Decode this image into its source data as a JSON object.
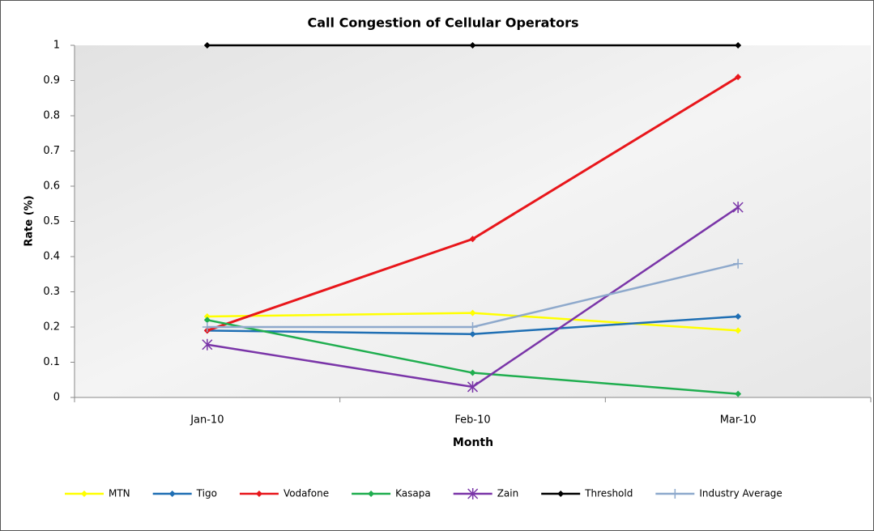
{
  "chart_data": {
    "type": "line",
    "title": "Call Congestion of Cellular Operators",
    "x_label": "Month",
    "y_label": "Rate (%)",
    "categories": [
      "Jan-10",
      "Feb-10",
      "Mar-10"
    ],
    "ylim": [
      0,
      1
    ],
    "yticks": [
      0,
      0.1,
      0.2,
      0.3,
      0.4,
      0.5,
      0.6,
      0.7,
      0.8,
      0.9,
      1
    ],
    "legend": "bottom",
    "series": [
      {
        "name": "MTN",
        "color": "#ffff00",
        "marker": "diamond",
        "values": [
          0.23,
          0.24,
          0.19
        ]
      },
      {
        "name": "Tigo",
        "color": "#1f6fb4",
        "marker": "diamond",
        "values": [
          0.19,
          0.18,
          0.23
        ]
      },
      {
        "name": "Vodafone",
        "color": "#e8161b",
        "marker": "diamond",
        "values": [
          0.19,
          0.45,
          0.91
        ]
      },
      {
        "name": "Kasapa",
        "color": "#1fae4f",
        "marker": "diamond",
        "values": [
          0.22,
          0.07,
          0.01
        ]
      },
      {
        "name": "Zain",
        "color": "#7a35a8",
        "marker": "star",
        "values": [
          0.15,
          0.03,
          0.54
        ]
      },
      {
        "name": "Threshold",
        "color": "#000000",
        "marker": "diamond",
        "values": [
          1,
          1,
          1
        ]
      },
      {
        "name": "Industry Average",
        "color": "#8ea9cc",
        "marker": "plus",
        "values": [
          0.2,
          0.2,
          0.38
        ]
      }
    ]
  }
}
